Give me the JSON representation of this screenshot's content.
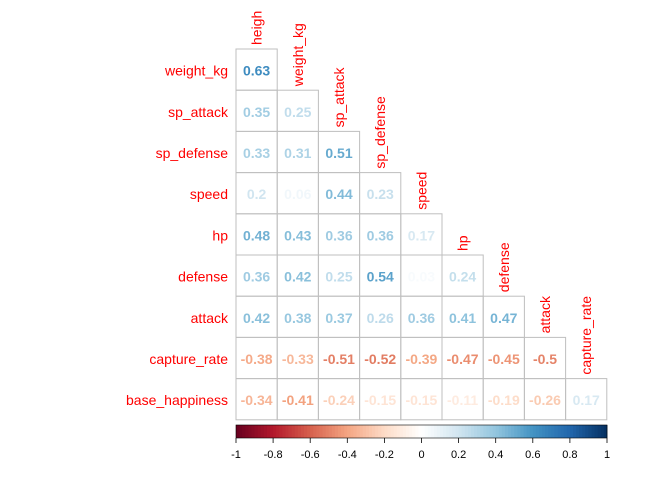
{
  "chart_data": {
    "type": "heatmap",
    "title": "",
    "colors": {
      "negative_strong": "#67001F",
      "positive_strong": "#053061",
      "label": "#FF0000",
      "grid": "#BFBFBF"
    },
    "variables": [
      "height",
      "weight_kg",
      "sp_attack",
      "sp_defense",
      "speed",
      "hp",
      "defense",
      "attack",
      "capture_rate",
      "base_happiness"
    ],
    "column_labels": [
      "heigh",
      "weight_kg",
      "sp_attack",
      "sp_defense",
      "speed",
      "hp",
      "defense",
      "attack",
      "capture_rate"
    ],
    "row_labels": [
      "weight_kg",
      "sp_attack",
      "sp_defense",
      "speed",
      "hp",
      "defense",
      "attack",
      "capture_rate",
      "base_happiness"
    ],
    "matrix_lower": [
      [
        0.63
      ],
      [
        0.35,
        0.25
      ],
      [
        0.33,
        0.31,
        0.51
      ],
      [
        0.2,
        0.06,
        0.44,
        0.23
      ],
      [
        0.48,
        0.43,
        0.36,
        0.36,
        0.17
      ],
      [
        0.36,
        0.42,
        0.25,
        0.54,
        0.03,
        0.24
      ],
      [
        0.42,
        0.38,
        0.37,
        0.26,
        0.36,
        0.41,
        0.47
      ],
      [
        -0.38,
        -0.33,
        -0.51,
        -0.52,
        -0.39,
        -0.47,
        -0.45,
        -0.5
      ],
      [
        -0.34,
        -0.41,
        -0.24,
        -0.15,
        -0.15,
        -0.11,
        -0.19,
        -0.26,
        0.17
      ]
    ],
    "colorbar": {
      "range": [
        -1,
        1
      ],
      "ticks": [
        "-1",
        "-0.8",
        "-0.6",
        "-0.4",
        "-0.2",
        "0",
        "0.2",
        "0.4",
        "0.6",
        "0.8",
        "1"
      ]
    }
  }
}
